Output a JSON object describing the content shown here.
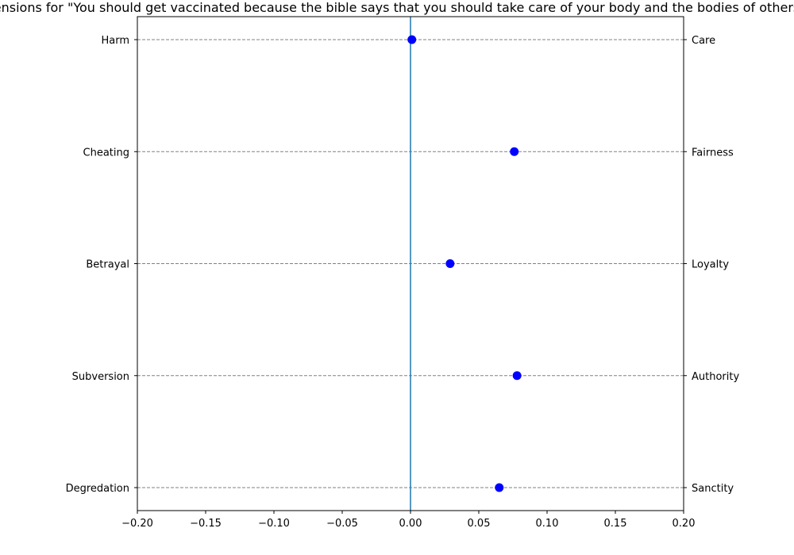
{
  "chart_data": {
    "type": "scatter",
    "title": "Dimensions for \"You should get vaccinated because the bible says that you should take care of your body and the bodies of others\"",
    "xlabel": "",
    "ylabel": "",
    "xlim": [
      -0.2,
      0.2
    ],
    "x_ticks": [
      -0.2,
      -0.15,
      -0.1,
      -0.05,
      0.0,
      0.05,
      0.1,
      0.15,
      0.2
    ],
    "x_tick_labels": [
      "−0.20",
      "−0.15",
      "−0.10",
      "−0.05",
      "0.00",
      "0.05",
      "0.10",
      "0.15",
      "0.20"
    ],
    "categories_left": [
      "Harm",
      "Cheating",
      "Betrayal",
      "Subversion",
      "Degredation"
    ],
    "categories_right": [
      "Care",
      "Fairness",
      "Loyalty",
      "Authority",
      "Sanctity"
    ],
    "values": [
      0.001,
      0.076,
      0.029,
      0.078,
      0.065
    ],
    "reference_line_x": 0.0,
    "grid": "horizontal dashed",
    "colors": {
      "points": "#0000ff",
      "reference_line": "#1f77b4",
      "grid": "#808080",
      "axes": "#000000"
    }
  }
}
